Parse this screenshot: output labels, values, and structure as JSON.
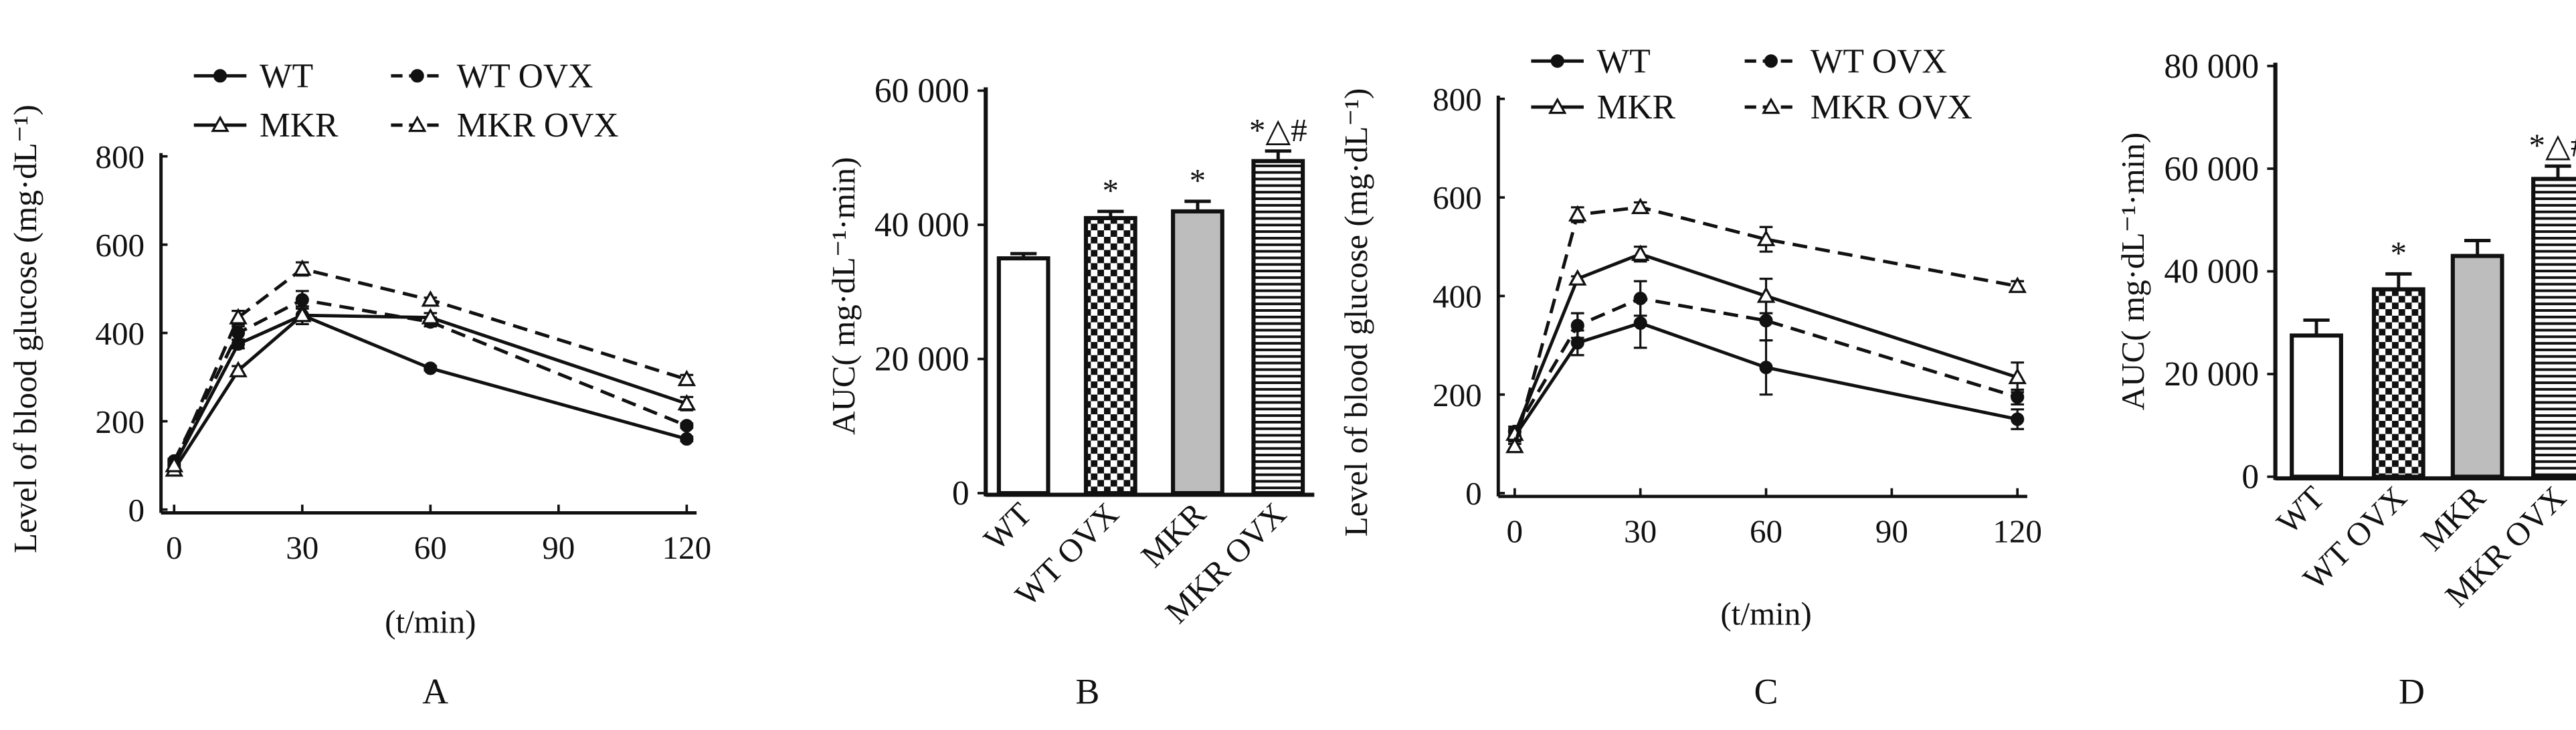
{
  "chart_data": [
    {
      "panel": "A",
      "type": "line",
      "xlabel": "(t/min)",
      "xlabel_italic": "t",
      "ylabel": "Level of blood glucose (mg·dL⁻¹)",
      "x": [
        0,
        15,
        30,
        60,
        120
      ],
      "xticks": [
        0,
        30,
        60,
        90,
        120
      ],
      "xlim": [
        0,
        120
      ],
      "ylim": [
        0,
        800
      ],
      "yticks": [
        0,
        200,
        400,
        600,
        800
      ],
      "legend": "top-left",
      "series": [
        {
          "name": "WT",
          "values": [
            100,
            375,
            440,
            320,
            160
          ],
          "error": [
            5,
            10,
            20,
            5,
            5
          ],
          "marker": "circle",
          "dash": false
        },
        {
          "name": "WT OVX",
          "values": [
            110,
            400,
            475,
            425,
            190
          ],
          "error": [
            5,
            15,
            20,
            10,
            5
          ],
          "marker": "circle",
          "dash": true
        },
        {
          "name": "MKR",
          "values": [
            90,
            315,
            440,
            435,
            240
          ],
          "error": [
            5,
            10,
            20,
            10,
            15
          ],
          "marker": "triangle",
          "dash": false
        },
        {
          "name": "MKR OVX",
          "values": [
            100,
            435,
            545,
            475,
            295
          ],
          "error": [
            5,
            15,
            15,
            5,
            10
          ],
          "marker": "triangle",
          "dash": true
        }
      ]
    },
    {
      "panel": "B",
      "type": "bar",
      "ylabel": "AUC( mg·dL⁻¹·min)",
      "categories": [
        "WT",
        "WT OVX",
        "MKR",
        "MKR OVX"
      ],
      "values": [
        35000,
        41000,
        42000,
        49500
      ],
      "error": [
        700,
        1000,
        1500,
        1500
      ],
      "annotations": [
        "",
        "*",
        "*",
        "*△#"
      ],
      "ylim": [
        0,
        60000
      ],
      "yticks": [
        0,
        20000,
        40000,
        60000
      ],
      "ytick_labels": [
        "0",
        "20 000",
        "40 000",
        "60 000"
      ]
    },
    {
      "panel": "C",
      "type": "line",
      "xlabel": "(t/min)",
      "xlabel_italic": "t",
      "ylabel": "Level of blood glucose (mg·dL⁻¹)",
      "x": [
        0,
        15,
        30,
        60,
        120
      ],
      "xticks": [
        0,
        30,
        60,
        90,
        120
      ],
      "xlim": [
        0,
        120
      ],
      "ylim": [
        0,
        800
      ],
      "yticks": [
        0,
        200,
        400,
        600,
        800
      ],
      "legend": "top-left",
      "series": [
        {
          "name": "WT",
          "values": [
            115,
            305,
            345,
            255,
            150
          ],
          "error": [
            10,
            25,
            50,
            55,
            20
          ],
          "marker": "circle",
          "dash": false
        },
        {
          "name": "WT OVX",
          "values": [
            125,
            340,
            395,
            350,
            195
          ],
          "error": [
            10,
            25,
            35,
            40,
            15
          ],
          "marker": "circle",
          "dash": true
        },
        {
          "name": "MKR",
          "values": [
            120,
            435,
            485,
            400,
            235
          ],
          "error": [
            10,
            5,
            15,
            35,
            30
          ],
          "marker": "triangle",
          "dash": false
        },
        {
          "name": "MKR OVX",
          "values": [
            95,
            565,
            580,
            515,
            420
          ],
          "error": [
            5,
            15,
            10,
            25,
            10
          ],
          "marker": "triangle",
          "dash": true
        }
      ]
    },
    {
      "panel": "D",
      "type": "bar",
      "ylabel": "AUC( mg·dL⁻¹·min)",
      "categories": [
        "WT",
        "WT OVX",
        "MKR",
        "MKR OVX"
      ],
      "values": [
        27500,
        36500,
        43000,
        58000
      ],
      "error": [
        3000,
        3000,
        3000,
        2500
      ],
      "annotations": [
        "",
        "*",
        "",
        "*△#"
      ],
      "ylim": [
        0,
        80000
      ],
      "yticks": [
        0,
        20000,
        40000,
        60000,
        80000
      ],
      "ytick_labels": [
        "0",
        "20 000",
        "40 000",
        "60 000",
        "80 000"
      ]
    }
  ]
}
